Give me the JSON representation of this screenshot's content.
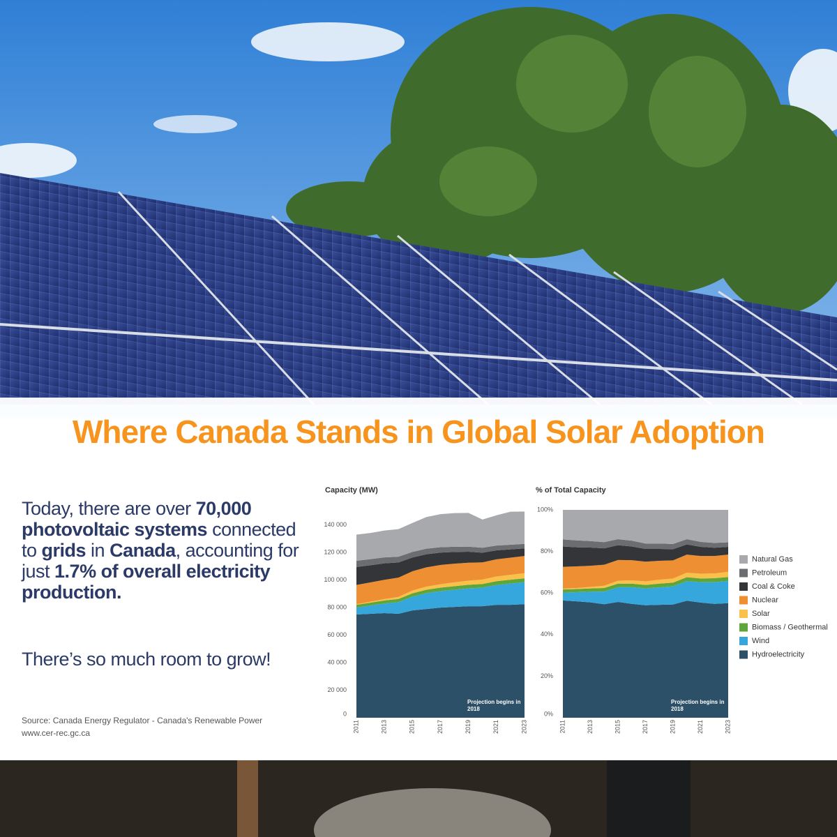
{
  "title": "Where Canada Stands in Global Solar Adoption",
  "body": {
    "runs": [
      {
        "text": "Today, there are over ",
        "bold": false
      },
      {
        "text": "70,000 photovoltaic systems",
        "bold": true
      },
      {
        "text": " connected to ",
        "bold": false
      },
      {
        "text": "grids",
        "bold": true
      },
      {
        "text": " in ",
        "bold": false
      },
      {
        "text": "Canada",
        "bold": true
      },
      {
        "text": ", accounting for just ",
        "bold": false
      },
      {
        "text": "1.7% of overall electricity production.",
        "bold": true
      }
    ],
    "closing": "There’s so much room to grow!"
  },
  "source": [
    "Source: Canada Energy Regulator - Canada's Renewable Power",
    "www.cer-rec.gc.ca"
  ],
  "chart_data": [
    {
      "type": "stacked_area",
      "title": "Capacity (MW)",
      "annotation": "Projection begins in 2018",
      "x": [
        2011,
        2012,
        2013,
        2014,
        2015,
        2016,
        2017,
        2018,
        2019,
        2020,
        2021,
        2022,
        2023
      ],
      "xlim": [
        2011,
        2023
      ],
      "xticks": [
        2011,
        2013,
        2015,
        2017,
        2019,
        2021,
        2023
      ],
      "ylim": [
        0,
        150000
      ],
      "yticks": [
        0,
        {
          "value": 20000,
          "label": "20 000"
        },
        {
          "value": 40000,
          "label": "40 000"
        },
        {
          "value": 60000,
          "label": "60 000"
        },
        {
          "value": 80000,
          "label": "80 000"
        },
        {
          "value": 100000,
          "label": "100 000"
        },
        {
          "value": 120000,
          "label": "120 000"
        },
        {
          "value": 140000,
          "label": "140 000"
        }
      ],
      "series": [
        {
          "name": "Hydroelectricity",
          "color": "#2d5069",
          "values": [
            75000,
            75500,
            76000,
            75500,
            78000,
            79000,
            80000,
            80500,
            81000,
            81000,
            82000,
            82000,
            82500
          ]
        },
        {
          "name": "Wind",
          "color": "#35a7dd",
          "values": [
            5000,
            6000,
            7000,
            8500,
            10000,
            11500,
            12000,
            12500,
            13000,
            13500,
            14500,
            15500,
            16000
          ]
        },
        {
          "name": "Biomass / Geothermal",
          "color": "#5ea63a",
          "values": [
            2000,
            2100,
            2200,
            2300,
            2400,
            2500,
            2500,
            2600,
            2600,
            2700,
            2700,
            2800,
            2800
          ]
        },
        {
          "name": "Solar",
          "color": "#f9c04a",
          "values": [
            500,
            700,
            1000,
            1500,
            2000,
            2300,
            2500,
            2800,
            3000,
            3200,
            3400,
            3500,
            3700
          ]
        },
        {
          "name": "Nuclear",
          "color": "#ef8f34",
          "values": [
            14000,
            14000,
            14000,
            14000,
            14000,
            14000,
            14000,
            13500,
            13000,
            12500,
            12500,
            12500,
            12500
          ]
        },
        {
          "name": "Coal & Coke",
          "color": "#333538",
          "values": [
            13000,
            12500,
            12000,
            11000,
            10000,
            9500,
            9000,
            8500,
            8000,
            7000,
            6500,
            6000,
            5500
          ]
        },
        {
          "name": "Petroleum",
          "color": "#6c6d70",
          "values": [
            4500,
            4400,
            4300,
            4200,
            4100,
            4000,
            3900,
            3800,
            3700,
            3600,
            3500,
            3400,
            3300
          ]
        },
        {
          "name": "Natural Gas",
          "color": "#a7a9ad",
          "values": [
            19000,
            19000,
            19500,
            20000,
            21000,
            23000,
            24000,
            24500,
            24500,
            20500,
            22000,
            24000,
            23500
          ]
        }
      ]
    },
    {
      "type": "stacked_area",
      "title": "% of Total Capacity",
      "annotation": "Projection begins in 2018",
      "legend": "right",
      "x": [
        2011,
        2012,
        2013,
        2014,
        2015,
        2016,
        2017,
        2018,
        2019,
        2020,
        2021,
        2022,
        2023
      ],
      "xlim": [
        2011,
        2023
      ],
      "xticks": [
        2011,
        2013,
        2015,
        2017,
        2019,
        2021,
        2023
      ],
      "ylim": [
        0,
        100
      ],
      "yticks": [
        {
          "value": 0,
          "label": "0%"
        },
        {
          "value": 20,
          "label": "20%"
        },
        {
          "value": 40,
          "label": "40%"
        },
        {
          "value": 60,
          "label": "60%"
        },
        {
          "value": 80,
          "label": "80%"
        },
        {
          "value": 100,
          "label": "100%"
        }
      ],
      "series": [
        {
          "name": "Hydroelectricity",
          "color": "#2d5069",
          "values": [
            56.4,
            56.0,
            55.5,
            54.6,
            55.7,
            54.8,
            54.1,
            54.3,
            54.5,
            56.3,
            55.4,
            54.8,
            55.1
          ]
        },
        {
          "name": "Wind",
          "color": "#35a7dd",
          "values": [
            3.8,
            4.4,
            5.1,
            6.1,
            7.1,
            8.0,
            8.1,
            8.4,
            8.7,
            9.4,
            9.8,
            10.4,
            10.7
          ]
        },
        {
          "name": "Biomass / Geothermal",
          "color": "#5ea63a",
          "values": [
            1.5,
            1.5,
            1.6,
            1.7,
            1.7,
            1.7,
            1.7,
            1.8,
            1.8,
            1.9,
            1.8,
            1.9,
            1.9
          ]
        },
        {
          "name": "Solar",
          "color": "#f9c04a",
          "values": [
            0.4,
            0.5,
            0.7,
            1.1,
            1.4,
            1.6,
            1.7,
            1.9,
            2.0,
            2.2,
            2.3,
            2.3,
            2.5
          ]
        },
        {
          "name": "Nuclear",
          "color": "#ef8f34",
          "values": [
            10.5,
            10.4,
            10.2,
            10.1,
            10.0,
            9.7,
            9.5,
            9.1,
            8.7,
            8.7,
            8.5,
            8.4,
            8.3
          ]
        },
        {
          "name": "Coal & Coke",
          "color": "#333538",
          "values": [
            9.8,
            9.2,
            8.8,
            7.9,
            7.1,
            6.6,
            6.1,
            5.7,
            5.4,
            4.9,
            4.4,
            4.0,
            3.7
          ]
        },
        {
          "name": "Petroleum",
          "color": "#6c6d70",
          "values": [
            3.4,
            3.3,
            3.1,
            3.0,
            2.9,
            2.8,
            2.6,
            2.6,
            2.5,
            2.5,
            2.4,
            2.3,
            2.2
          ]
        },
        {
          "name": "Natural Gas",
          "color": "#a7a9ad",
          "values": [
            14.2,
            14.7,
            15.0,
            15.5,
            14.1,
            14.8,
            16.2,
            16.2,
            16.4,
            14.1,
            15.4,
            15.9,
            15.6
          ]
        }
      ]
    }
  ]
}
